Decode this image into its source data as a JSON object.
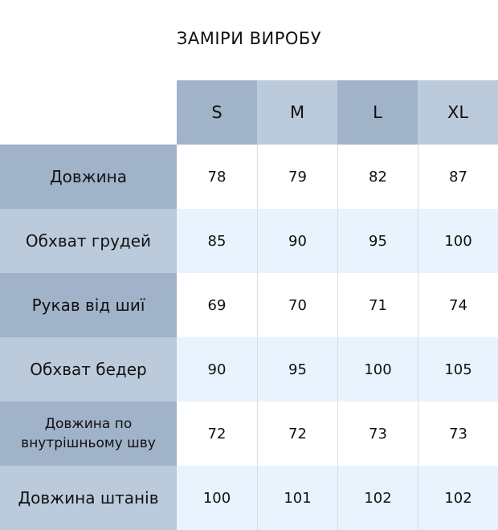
{
  "title": "ЗАМІРИ ВИРОБУ",
  "colors": {
    "header_dark": "#a1b3c9",
    "header_light": "#bccbdc",
    "row_alt": "#e8f3fd"
  },
  "sizes": [
    "S",
    "M",
    "L",
    "XL"
  ],
  "rows": [
    {
      "label": "Довжина",
      "values": [
        "78",
        "79",
        "82",
        "87"
      ]
    },
    {
      "label": "Обхват грудей",
      "values": [
        "85",
        "90",
        "95",
        "100"
      ]
    },
    {
      "label": "Рукав від шиї",
      "values": [
        "69",
        "70",
        "71",
        "74"
      ]
    },
    {
      "label": "Обхват бедер",
      "values": [
        "90",
        "95",
        "100",
        "105"
      ]
    },
    {
      "label": "Довжина по внутрішньому шву",
      "values": [
        "72",
        "72",
        "73",
        "73"
      ]
    },
    {
      "label": "Довжина штанів",
      "values": [
        "100",
        "101",
        "102",
        "102"
      ]
    }
  ]
}
